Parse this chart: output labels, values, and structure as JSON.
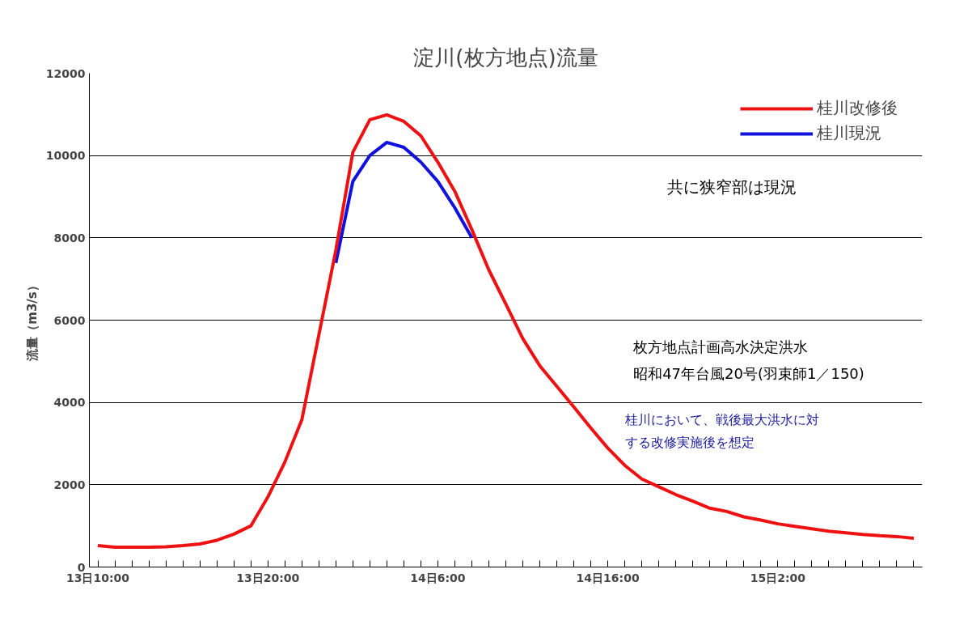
{
  "chart_data": {
    "type": "line",
    "title": "淀川(枚方地点)流量",
    "ylabel": "流量（m3/s）",
    "categories": [
      "13日10:00",
      null,
      null,
      null,
      null,
      null,
      null,
      null,
      null,
      null,
      "13日20:00",
      null,
      null,
      null,
      null,
      null,
      null,
      null,
      null,
      null,
      "14日6:00",
      null,
      null,
      null,
      null,
      null,
      null,
      null,
      null,
      null,
      "14日16:00",
      null,
      null,
      null,
      null,
      null,
      null,
      null,
      null,
      null,
      "15日2:00",
      null,
      null,
      null,
      null,
      null,
      null,
      null,
      null
    ],
    "series": [
      {
        "name": "桂川改修後",
        "color": "#ee1111",
        "values": [
          520,
          480,
          480,
          480,
          490,
          520,
          560,
          650,
          800,
          1000,
          1700,
          2550,
          3580,
          5640,
          7700,
          10080,
          10870,
          10990,
          10830,
          10480,
          9840,
          9130,
          8200,
          7220,
          6390,
          5550,
          4890,
          4390,
          3890,
          3380,
          2890,
          2470,
          2140,
          1950,
          1760,
          1600,
          1430,
          1350,
          1220,
          1140,
          1050,
          990,
          930,
          870,
          830,
          790,
          760,
          740,
          700
        ]
      },
      {
        "name": "桂川現況",
        "color": "#1111dd",
        "values": [
          null,
          null,
          null,
          null,
          null,
          null,
          null,
          null,
          null,
          null,
          null,
          null,
          null,
          null,
          7390,
          9370,
          10000,
          10320,
          10200,
          9840,
          9370,
          8730,
          8000,
          null,
          null,
          null,
          null,
          null,
          null,
          null,
          null,
          null,
          null,
          null,
          null,
          null,
          null,
          null,
          null,
          null,
          null,
          null,
          null,
          null,
          null,
          null,
          null,
          null,
          null
        ]
      }
    ],
    "ylim": [
      0,
      12000
    ],
    "yticks": [
      0,
      2000,
      4000,
      6000,
      8000,
      10000,
      12000
    ],
    "grid": "y",
    "legend": "top right",
    "marker": "none",
    "line_style": "solid",
    "annotations": [
      "共に狭窄部は現況",
      "枚方地点計画高水決定洪水",
      "昭和47年台風20号(羽束師1／150)",
      "桂川において、戦後最大洪水に対",
      "する改修実施後を想定"
    ]
  }
}
